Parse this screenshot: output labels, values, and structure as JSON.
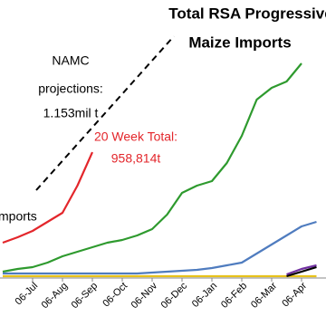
{
  "chart_data": {
    "type": "line",
    "title": [
      "Total RSA Progressive",
      "Maize Imports"
    ],
    "annotations": [
      "NAMC",
      "projections:",
      "1.153mil t"
    ],
    "total_annotation": [
      "20 Week Total:",
      "958,814t"
    ],
    "legend_fragment": "mports",
    "categories": [
      null,
      null,
      "06-Jul",
      null,
      "06-Aug",
      null,
      "06-Sep",
      null,
      "06-Oct",
      null,
      "06-Nov",
      null,
      "06-Dec",
      null,
      "06-Jan",
      null,
      "06-Feb",
      null,
      "06-Mar",
      null,
      "06-Apr",
      null
    ],
    "ylim": [
      0,
      2100000
    ],
    "series": [
      {
        "color": "#e3262b",
        "values": [
          259000,
          301000,
          350000,
          420000,
          490000,
          700000,
          958814,
          null,
          null,
          null,
          null,
          null,
          null,
          null,
          null,
          null,
          null,
          null,
          null,
          null,
          null,
          null
        ]
      },
      {
        "color": "#2e9a2e",
        "values": [
          35000,
          56000,
          70000,
          105000,
          154000,
          189000,
          224000,
          259000,
          280000,
          315000,
          364000,
          476000,
          644000,
          700000,
          735000,
          875000,
          1085000,
          1365000,
          1456000,
          1505000,
          1645000,
          null
        ]
      },
      {
        "color": "#4f7cbf",
        "values": [
          21000,
          21000,
          21000,
          21000,
          21000,
          21000,
          21000,
          21000,
          21000,
          21000,
          28000,
          35000,
          42000,
          49000,
          63000,
          84000,
          105000,
          175000,
          245000,
          315000,
          385000,
          420000
        ]
      },
      {
        "color": "#e8c21a",
        "values": [
          0,
          0,
          0,
          0,
          0,
          0,
          0,
          0,
          0,
          0,
          0,
          0,
          0,
          0,
          0,
          0,
          0,
          0,
          0,
          0,
          0,
          0
        ]
      },
      {
        "color": "#7030a0",
        "values": [
          null,
          null,
          null,
          null,
          null,
          null,
          null,
          null,
          null,
          null,
          null,
          null,
          null,
          null,
          null,
          null,
          null,
          null,
          null,
          14000,
          56000,
          84000
        ]
      },
      {
        "color": "#000000",
        "values": [
          null,
          null,
          null,
          null,
          null,
          null,
          null,
          null,
          null,
          null,
          null,
          null,
          null,
          null,
          null,
          null,
          null,
          null,
          null,
          0,
          35000,
          70000
        ]
      }
    ]
  }
}
